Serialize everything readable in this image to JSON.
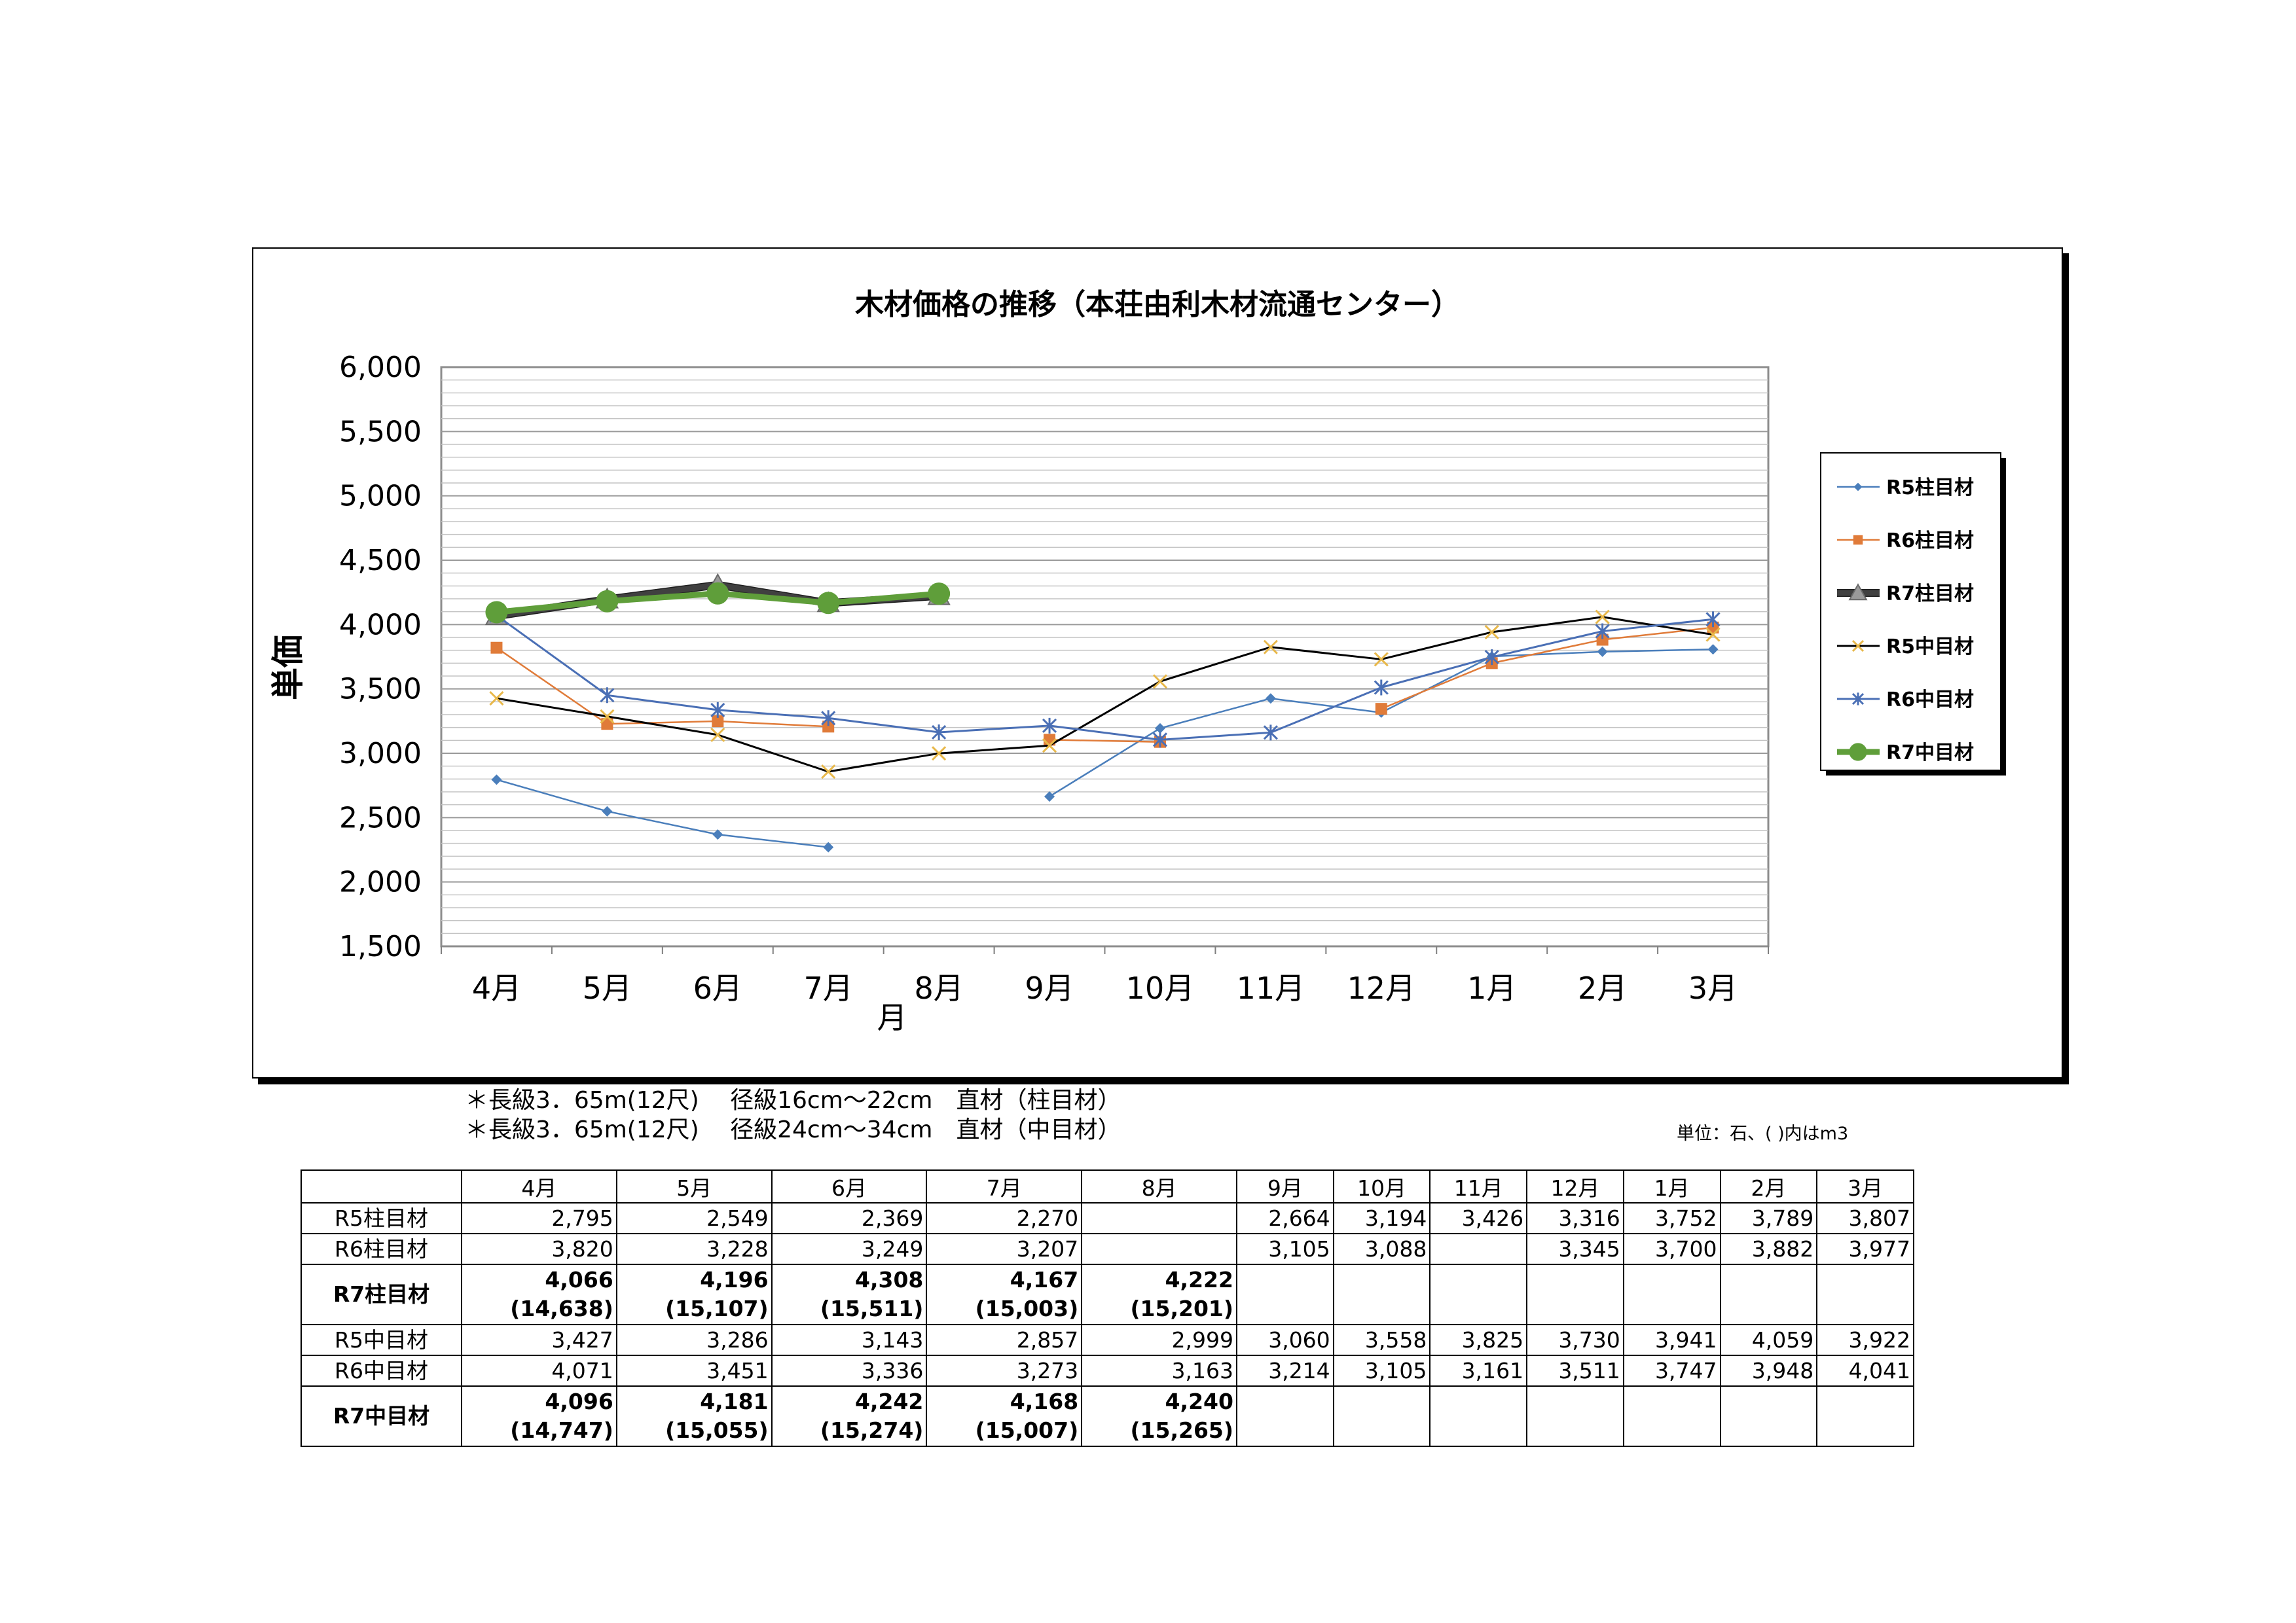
{
  "chart_data": {
    "type": "line",
    "title": "木材価格の推移（本荘由利木材流通センター）",
    "xlabel": "月",
    "ylabel": "単価",
    "categories": [
      "4月",
      "5月",
      "6月",
      "7月",
      "8月",
      "9月",
      "10月",
      "11月",
      "12月",
      "1月",
      "2月",
      "3月"
    ],
    "ylim": [
      1500,
      6000
    ],
    "yticks": [
      "6,000",
      "5,500",
      "5,000",
      "4,500",
      "4,000",
      "3,500",
      "3,000",
      "2,500",
      "2,000",
      "1,500"
    ],
    "grid": true,
    "legend_position": "right",
    "series": [
      {
        "name": "R5柱目材",
        "color": "#4a7ebb",
        "marker": "diamond",
        "width": 2.5,
        "values": [
          2795,
          2549,
          2369,
          2270,
          null,
          2664,
          3194,
          3426,
          3316,
          3752,
          3789,
          3807
        ]
      },
      {
        "name": "R6柱目材",
        "color": "#e07b39",
        "marker": "square",
        "width": 2.5,
        "values": [
          3820,
          3228,
          3249,
          3207,
          null,
          3105,
          3088,
          null,
          3345,
          3700,
          3882,
          3977
        ]
      },
      {
        "name": "R7柱目材",
        "color": "#404040",
        "marker": "triangle",
        "width": 9,
        "values": [
          4066,
          4196,
          4308,
          4167,
          4222,
          null,
          null,
          null,
          null,
          null,
          null,
          null
        ]
      },
      {
        "name": "R5中目材",
        "color": "#000000",
        "marker": "star",
        "width": 3,
        "values": [
          3427,
          3286,
          3143,
          2857,
          2999,
          3060,
          3558,
          3825,
          3730,
          3941,
          4059,
          3922
        ]
      },
      {
        "name": "R6中目材",
        "color": "#4a6fb5",
        "marker": "asterisk",
        "width": 3,
        "values": [
          4071,
          3451,
          3336,
          3273,
          3163,
          3214,
          3105,
          3161,
          3511,
          3747,
          3948,
          4041
        ]
      },
      {
        "name": "R7中目材",
        "color": "#5f9e3a",
        "marker": "circle",
        "width": 9,
        "values": [
          4096,
          4181,
          4242,
          4168,
          4240,
          null,
          null,
          null,
          null,
          null,
          null,
          null
        ]
      }
    ]
  },
  "notes": [
    "＊長級3．65m(12尺)　 径級16cm～22cm　直材（柱目材）",
    "＊長級3．65m(12尺)　 径級24cm～34cm　直材（中目材）"
  ],
  "unit_note": "単位：石、( )内はm3",
  "table": {
    "headers": [
      "4月",
      "5月",
      "6月",
      "7月",
      "8月",
      "9月",
      "10月",
      "11月",
      "12月",
      "1月",
      "2月",
      "3月"
    ],
    "rows": [
      {
        "label": "R5柱目材",
        "bold": false,
        "cells": [
          "2,795",
          "2,549",
          "2,369",
          "2,270",
          "",
          "2,664",
          "3,194",
          "3,426",
          "3,316",
          "3,752",
          "3,789",
          "3,807"
        ]
      },
      {
        "label": "R6柱目材",
        "bold": false,
        "cells": [
          "3,820",
          "3,228",
          "3,249",
          "3,207",
          "",
          "3,105",
          "3,088",
          "",
          "3,345",
          "3,700",
          "3,882",
          "3,977"
        ]
      },
      {
        "label": "R7柱目材",
        "bold": true,
        "cells": [
          "4,066",
          "4,196",
          "4,308",
          "4,167",
          "4,222",
          "",
          "",
          "",
          "",
          "",
          "",
          ""
        ],
        "sub": [
          "(14,638)",
          "(15,107)",
          "(15,511)",
          "(15,003)",
          "(15,201)",
          "",
          "",
          "",
          "",
          "",
          "",
          ""
        ]
      },
      {
        "label": "R5中目材",
        "bold": false,
        "cells": [
          "3,427",
          "3,286",
          "3,143",
          "2,857",
          "2,999",
          "3,060",
          "3,558",
          "3,825",
          "3,730",
          "3,941",
          "4,059",
          "3,922"
        ]
      },
      {
        "label": "R6中目材",
        "bold": false,
        "cells": [
          "4,071",
          "3,451",
          "3,336",
          "3,273",
          "3,163",
          "3,214",
          "3,105",
          "3,161",
          "3,511",
          "3,747",
          "3,948",
          "4,041"
        ]
      },
      {
        "label": "R7中目材",
        "bold": true,
        "cells": [
          "4,096",
          "4,181",
          "4,242",
          "4,168",
          "4,240",
          "",
          "",
          "",
          "",
          "",
          "",
          ""
        ],
        "sub": [
          "(14,747)",
          "(15,055)",
          "(15,274)",
          "(15,007)",
          "(15,265)",
          "",
          "",
          "",
          "",
          "",
          "",
          ""
        ]
      }
    ]
  }
}
